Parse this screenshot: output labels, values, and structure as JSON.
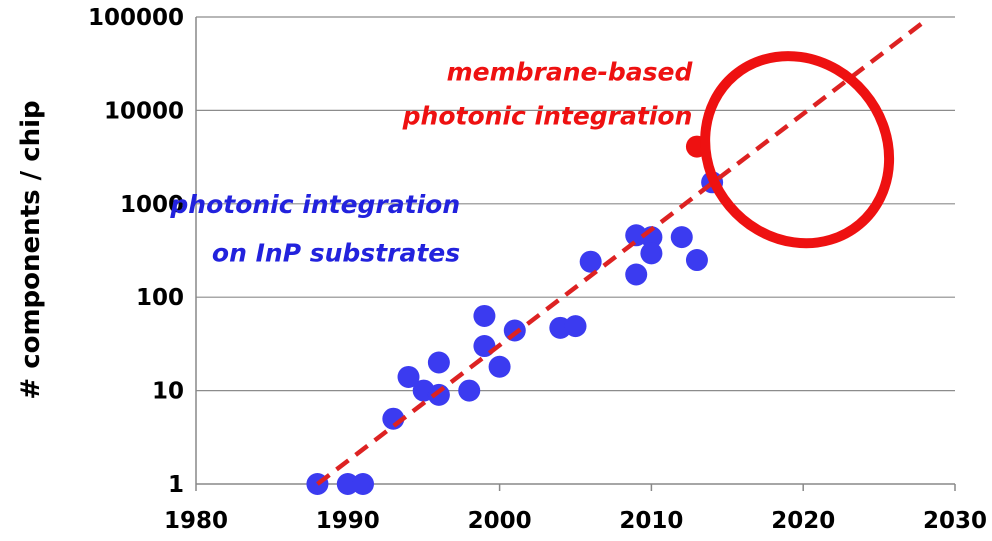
{
  "chart_data": {
    "type": "scatter",
    "title": "",
    "xlabel": "",
    "ylabel": "# components / chip",
    "xlim": [
      1980,
      2030
    ],
    "ylim": [
      1,
      100000
    ],
    "yscale": "log",
    "grid": "horizontal",
    "x_ticks": [
      "1980",
      "1990",
      "2000",
      "2010",
      "2020",
      "2030"
    ],
    "y_ticks": [
      "1",
      "10",
      "100",
      "1000",
      "10000",
      "100000"
    ],
    "series": [
      {
        "name": "photonic integration on InP substrates",
        "color": "#3b3bf0",
        "points": [
          [
            1988,
            1
          ],
          [
            1990,
            1
          ],
          [
            1991,
            1
          ],
          [
            1993,
            5
          ],
          [
            1994,
            14
          ],
          [
            1995,
            10
          ],
          [
            1996,
            9
          ],
          [
            1996,
            20
          ],
          [
            1998,
            10
          ],
          [
            1999,
            63
          ],
          [
            1999,
            30
          ],
          [
            2000,
            18
          ],
          [
            2001,
            44
          ],
          [
            2004,
            47
          ],
          [
            2005,
            49
          ],
          [
            2006,
            240
          ],
          [
            2009,
            460
          ],
          [
            2009,
            175
          ],
          [
            2010,
            440
          ],
          [
            2010,
            295
          ],
          [
            2012,
            440
          ],
          [
            2013,
            250
          ],
          [
            2014,
            1700
          ]
        ]
      },
      {
        "name": "membrane-based photonic integration",
        "color": "#ee1111",
        "points": [
          [
            2013,
            4100
          ]
        ]
      }
    ],
    "trend_line": {
      "color": "#dd2222",
      "style": "dashed",
      "from": [
        1988,
        1
      ],
      "to": [
        2028,
        90000
      ]
    },
    "highlight_ellipse": {
      "color": "#ee1111",
      "center": [
        2019.6,
        3800
      ],
      "x_radius": 5.8,
      "y_factor": 11,
      "rotation_deg": -40
    },
    "annotations": [
      {
        "text": "membrane-based",
        "color": "#ee1111",
        "at": [
          2012.7,
          21000
        ]
      },
      {
        "text": "photonic integration",
        "color": "#ee1111",
        "at": [
          2012.7,
          7100
        ]
      },
      {
        "text": "photonic integration",
        "color": "#2222dd",
        "at": [
          1997.4,
          800
        ]
      },
      {
        "text": "on InP substrates",
        "color": "#2222dd",
        "at": [
          1997.4,
          240
        ]
      }
    ]
  }
}
